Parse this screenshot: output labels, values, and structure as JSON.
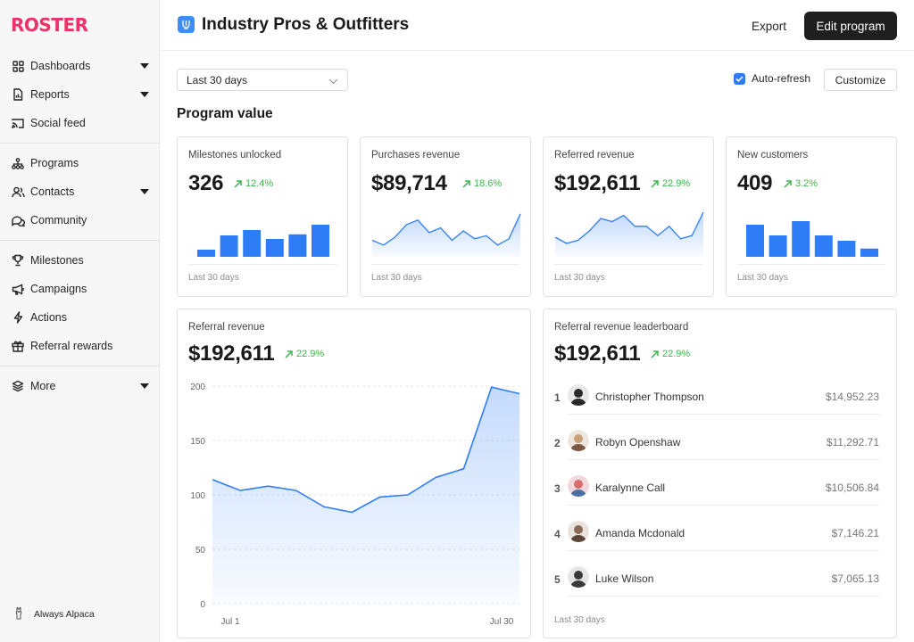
{
  "app": {
    "logo_text": "ROSTER",
    "workspace_name": "Always Alpaca"
  },
  "sidebar": {
    "groups": [
      [
        {
          "label": "Dashboards",
          "icon": "grid-icon",
          "caret": true
        },
        {
          "label": "Reports",
          "icon": "report-icon",
          "caret": true
        },
        {
          "label": "Social feed",
          "icon": "cast-icon",
          "caret": false
        }
      ],
      [
        {
          "label": "Programs",
          "icon": "hierarchy-icon",
          "caret": false
        },
        {
          "label": "Contacts",
          "icon": "contacts-icon",
          "caret": true
        },
        {
          "label": "Community",
          "icon": "chat-bubbles-icon",
          "caret": false
        }
      ],
      [
        {
          "label": "Milestones",
          "icon": "trophy-icon",
          "caret": false
        },
        {
          "label": "Campaigns",
          "icon": "megaphone-icon",
          "caret": false
        },
        {
          "label": "Actions",
          "icon": "lightning-icon",
          "caret": false
        },
        {
          "label": "Referral rewards",
          "icon": "gift-icon",
          "caret": false
        }
      ],
      [
        {
          "label": "More",
          "icon": "layers-icon",
          "caret": true
        }
      ]
    ]
  },
  "header": {
    "title": "Industry Pros & Outfitters",
    "export_label": "Export",
    "edit_label": "Edit program"
  },
  "toolbar": {
    "date_range": "Last 30 days",
    "auto_refresh_label": "Auto-refresh",
    "auto_refresh_checked": true,
    "customize_label": "Customize"
  },
  "section_title": "Program value",
  "colors": {
    "accent": "#2f7df6",
    "positive": "#3bb54a",
    "brand": "#f0306a"
  },
  "kpis": [
    {
      "label": "Milestones unlocked",
      "value": "326",
      "change": "12.4%",
      "footer": "Last 30 days",
      "chart": "bar",
      "data": [
        2,
        6,
        7.5,
        5,
        6.3,
        9
      ]
    },
    {
      "label": "Purchases revenue",
      "value": "$89,714",
      "change": "18.6%",
      "footer": "Last 30 days",
      "chart": "area",
      "data": [
        3,
        1.5,
        4,
        8,
        9.5,
        5.5,
        7,
        3,
        6,
        3.5,
        4.5,
        1.5,
        3.5,
        11.5
      ]
    },
    {
      "label": "Referred revenue",
      "value": "$192,611",
      "change": "22.9%",
      "footer": "Last 30 days",
      "chart": "area",
      "data": [
        4,
        2,
        3,
        6,
        10,
        9,
        11,
        7.5,
        7.5,
        4.5,
        7.5,
        3.5,
        4.5,
        12
      ]
    },
    {
      "label": "New customers",
      "value": "409",
      "change": "3.2%",
      "footer": "Last 30 days",
      "chart": "bar",
      "data": [
        9,
        6,
        10,
        6,
        4.5,
        2.3
      ]
    }
  ],
  "referral_revenue": {
    "label": "Referral revenue",
    "value": "$192,611",
    "change": "22.9%",
    "chart_data": {
      "type": "area",
      "x": [
        "Jul 1",
        "",
        "",
        "",
        "",
        "",
        "",
        "",
        "",
        "",
        "",
        "Jul 30"
      ],
      "values": [
        114,
        104,
        108,
        104,
        89,
        84,
        98,
        100,
        116,
        124,
        199,
        193
      ],
      "ylim": [
        0,
        200
      ],
      "yticks": [
        0,
        50,
        100,
        150,
        200
      ],
      "xtick_labels": [
        "Jul 1",
        "Jul 30"
      ],
      "grid": true
    }
  },
  "leaderboard": {
    "label": "Referral revenue leaderboard",
    "value": "$192,611",
    "change": "22.9%",
    "footer": "Last 30 days",
    "rows": [
      {
        "rank": "1",
        "name": "Christopher Thompson",
        "amount": "$14,952.23",
        "avatar_color": "#2b2b2b"
      },
      {
        "rank": "2",
        "name": "Robyn Openshaw",
        "amount": "$11,292.71",
        "avatar_color": "#c9a27a"
      },
      {
        "rank": "3",
        "name": "Karalynne Call",
        "amount": "$10,506.84",
        "avatar_color": "#d86b6b"
      },
      {
        "rank": "4",
        "name": "Amanda Mcdonald",
        "amount": "$7,146.21",
        "avatar_color": "#8a6a55"
      },
      {
        "rank": "5",
        "name": "Luke Wilson",
        "amount": "$7,065.13",
        "avatar_color": "#3a3a3a"
      }
    ]
  }
}
